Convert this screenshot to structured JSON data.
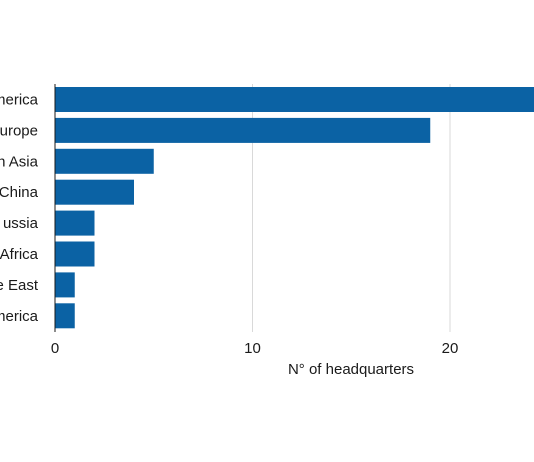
{
  "chart_data": {
    "type": "bar",
    "orientation": "horizontal",
    "categories": [
      "America",
      "Europe",
      "n Asia",
      "China",
      "Russia",
      "Africa",
      "e East",
      "America"
    ],
    "category_labels_visible": [
      "merica",
      "urope",
      "n Asia",
      "China",
      "ussia",
      "Africa",
      "e East",
      "merica"
    ],
    "values": [
      25,
      19,
      5,
      4,
      2,
      2,
      1,
      1
    ],
    "xlabel": "N° of headquarters",
    "ylabel": "",
    "title": "",
    "xlim": [
      0,
      24
    ],
    "xticks": [
      0,
      10,
      20
    ],
    "grid": true,
    "bar_color": "#0b62a4"
  }
}
